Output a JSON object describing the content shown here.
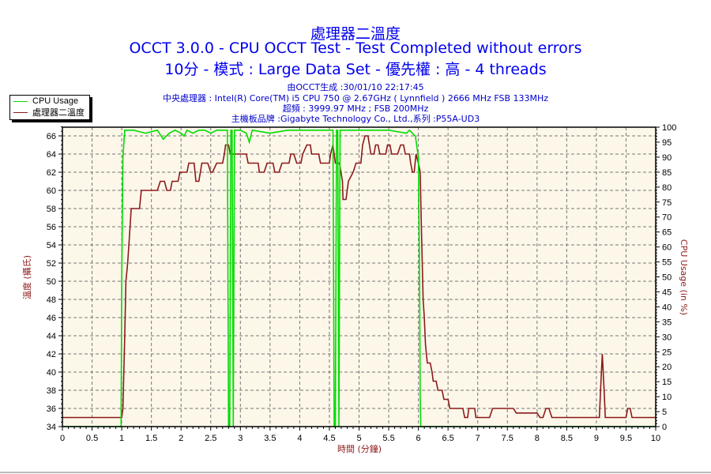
{
  "header": {
    "title": "處理器二溫度",
    "subtitle": "OCCT 3.0.0 - CPU OCCT Test - Test Completed without errors",
    "settings": "10分 - 模式 : Large Data Set - 優先權 : 高 - 4 threads"
  },
  "info": {
    "generated": "由OCCT生成 :30/01/10 22:17:45",
    "cpu": "中央處理器 : Intel(R) Core(TM) i5 CPU 750 @ 2.67GHz ( Lynnfield ) 2666 MHz FSB 133MHz",
    "overclock": "超頻 : 3999.97 MHz ; FSB 200MHz",
    "motherboard": "主機板品牌 :Gigabyte Technology Co., Ltd.,系列 :P55A-UD3"
  },
  "legend": {
    "items": [
      {
        "label": "CPU Usage",
        "color": "#00dd00"
      },
      {
        "label": "處理器二溫度",
        "color": "#8b1a1a"
      }
    ]
  },
  "colors": {
    "plot_bg": "#fdf7e9",
    "grid": "#777777",
    "temp": "#8b1a1a",
    "cpu": "#00dd00",
    "title": "#0000ee"
  },
  "chart_data": {
    "type": "line",
    "title": "處理器二溫度",
    "xlabel": "時間 (分鐘)",
    "ylabel": "溫度 (攝氏)",
    "y2label": "CPU Usage (in %)",
    "xlim": [
      0,
      10
    ],
    "ylim": [
      34,
      67
    ],
    "y2lim": [
      0,
      100
    ],
    "x_ticks": [
      "0",
      "0.5",
      "1",
      "1.5",
      "2",
      "2.5",
      "3",
      "3.5",
      "4",
      "4.5",
      "5",
      "5.5",
      "6",
      "6.5",
      "7",
      "7.5",
      "8",
      "8.5",
      "9",
      "9.5",
      "10"
    ],
    "y_ticks": [
      "34",
      "36",
      "38",
      "40",
      "42",
      "44",
      "46",
      "48",
      "50",
      "52",
      "54",
      "56",
      "58",
      "60",
      "62",
      "64",
      "66"
    ],
    "y2_ticks": [
      "0",
      "5",
      "10",
      "15",
      "20",
      "25",
      "30",
      "35",
      "40",
      "45",
      "50",
      "55",
      "60",
      "65",
      "70",
      "75",
      "80",
      "85",
      "90",
      "95",
      "100"
    ],
    "grid": true,
    "legend_position": "top-left outside",
    "series": [
      {
        "name": "處理器二溫度",
        "axis": "left",
        "points": [
          [
            0,
            35
          ],
          [
            1.0,
            35
          ],
          [
            1.02,
            36
          ],
          [
            1.05,
            44
          ],
          [
            1.07,
            50
          ],
          [
            1.1,
            52
          ],
          [
            1.13,
            55
          ],
          [
            1.16,
            58
          ],
          [
            1.3,
            58
          ],
          [
            1.33,
            60
          ],
          [
            1.6,
            60
          ],
          [
            1.65,
            61
          ],
          [
            1.72,
            61
          ],
          [
            1.76,
            60
          ],
          [
            1.82,
            60
          ],
          [
            1.85,
            61
          ],
          [
            1.95,
            61
          ],
          [
            1.98,
            62
          ],
          [
            2.1,
            62
          ],
          [
            2.13,
            63
          ],
          [
            2.22,
            63
          ],
          [
            2.25,
            61
          ],
          [
            2.3,
            61
          ],
          [
            2.35,
            63
          ],
          [
            2.45,
            63
          ],
          [
            2.5,
            62
          ],
          [
            2.53,
            62
          ],
          [
            2.6,
            63
          ],
          [
            2.7,
            63
          ],
          [
            2.73,
            64
          ],
          [
            2.75,
            65
          ],
          [
            2.8,
            65
          ],
          [
            2.83,
            64
          ],
          [
            3.1,
            64
          ],
          [
            3.13,
            63
          ],
          [
            3.3,
            63
          ],
          [
            3.32,
            62
          ],
          [
            3.4,
            62
          ],
          [
            3.45,
            63
          ],
          [
            3.55,
            63
          ],
          [
            3.58,
            62
          ],
          [
            3.65,
            62
          ],
          [
            3.7,
            63
          ],
          [
            3.82,
            63
          ],
          [
            3.85,
            64
          ],
          [
            3.9,
            64
          ],
          [
            3.95,
            63
          ],
          [
            4.02,
            63
          ],
          [
            4.05,
            64
          ],
          [
            4.12,
            65
          ],
          [
            4.18,
            65
          ],
          [
            4.2,
            64
          ],
          [
            4.32,
            64
          ],
          [
            4.35,
            63
          ],
          [
            4.5,
            63
          ],
          [
            4.52,
            64
          ],
          [
            4.56,
            65
          ],
          [
            4.6,
            63
          ],
          [
            4.67,
            63
          ],
          [
            4.72,
            61
          ],
          [
            4.73,
            59
          ],
          [
            4.78,
            59
          ],
          [
            4.82,
            61
          ],
          [
            4.9,
            62
          ],
          [
            4.95,
            63
          ],
          [
            5.0,
            63
          ],
          [
            5.03,
            63
          ],
          [
            5.06,
            65
          ],
          [
            5.1,
            66
          ],
          [
            5.15,
            66
          ],
          [
            5.2,
            64
          ],
          [
            5.25,
            64
          ],
          [
            5.28,
            65
          ],
          [
            5.32,
            65
          ],
          [
            5.35,
            64
          ],
          [
            5.45,
            64
          ],
          [
            5.48,
            65
          ],
          [
            5.52,
            65
          ],
          [
            5.55,
            64
          ],
          [
            5.65,
            64
          ],
          [
            5.7,
            65
          ],
          [
            5.75,
            65
          ],
          [
            5.78,
            64
          ],
          [
            5.85,
            64
          ],
          [
            5.87,
            63
          ],
          [
            5.9,
            62
          ],
          [
            5.93,
            62
          ],
          [
            5.96,
            64
          ],
          [
            6.0,
            63
          ],
          [
            6.03,
            62
          ],
          [
            6.05,
            56
          ],
          [
            6.08,
            48
          ],
          [
            6.1,
            46
          ],
          [
            6.12,
            43
          ],
          [
            6.15,
            41
          ],
          [
            6.2,
            41
          ],
          [
            6.23,
            40
          ],
          [
            6.25,
            39
          ],
          [
            6.3,
            39
          ],
          [
            6.33,
            38
          ],
          [
            6.4,
            38
          ],
          [
            6.43,
            37
          ],
          [
            6.5,
            37
          ],
          [
            6.53,
            36
          ],
          [
            6.6,
            36
          ],
          [
            6.75,
            36
          ],
          [
            6.78,
            35
          ],
          [
            6.83,
            35
          ],
          [
            6.85,
            36
          ],
          [
            6.95,
            36
          ],
          [
            6.97,
            35
          ],
          [
            7.2,
            35
          ],
          [
            7.25,
            36
          ],
          [
            7.3,
            36
          ],
          [
            7.4,
            36
          ],
          [
            7.6,
            36
          ],
          [
            7.65,
            35.5
          ],
          [
            8.0,
            35.5
          ],
          [
            8.05,
            35
          ],
          [
            8.1,
            35
          ],
          [
            8.15,
            36
          ],
          [
            8.2,
            36
          ],
          [
            8.25,
            35
          ],
          [
            9.05,
            35
          ],
          [
            9.07,
            38
          ],
          [
            9.1,
            42
          ],
          [
            9.13,
            38
          ],
          [
            9.15,
            35
          ],
          [
            9.5,
            35
          ],
          [
            9.53,
            36
          ],
          [
            9.57,
            36
          ],
          [
            9.6,
            35
          ],
          [
            10,
            35
          ]
        ]
      },
      {
        "name": "CPU Usage",
        "axis": "right",
        "points": [
          [
            0,
            0
          ],
          [
            0.99,
            0
          ],
          [
            1.0,
            50
          ],
          [
            1.02,
            90
          ],
          [
            1.05,
            99
          ],
          [
            1.2,
            99
          ],
          [
            1.4,
            98
          ],
          [
            1.6,
            99
          ],
          [
            1.7,
            96
          ],
          [
            1.8,
            98
          ],
          [
            1.9,
            99
          ],
          [
            2.0,
            98
          ],
          [
            2.05,
            97
          ],
          [
            2.1,
            99
          ],
          [
            2.2,
            98
          ],
          [
            2.3,
            99
          ],
          [
            2.4,
            99
          ],
          [
            2.5,
            98
          ],
          [
            2.6,
            99
          ],
          [
            2.78,
            99
          ],
          [
            2.8,
            0
          ],
          [
            2.82,
            0
          ],
          [
            2.84,
            99
          ],
          [
            2.86,
            99
          ],
          [
            2.88,
            0
          ],
          [
            2.9,
            99
          ],
          [
            3.0,
            99
          ],
          [
            3.1,
            98
          ],
          [
            3.15,
            95
          ],
          [
            3.2,
            99
          ],
          [
            3.5,
            98
          ],
          [
            3.8,
            99
          ],
          [
            4.2,
            99
          ],
          [
            4.56,
            99
          ],
          [
            4.58,
            0
          ],
          [
            4.6,
            0
          ],
          [
            4.62,
            99
          ],
          [
            4.64,
            99
          ],
          [
            4.66,
            0
          ],
          [
            4.68,
            99
          ],
          [
            5.0,
            99
          ],
          [
            5.5,
            99
          ],
          [
            5.8,
            98
          ],
          [
            5.85,
            99
          ],
          [
            5.95,
            97
          ],
          [
            6.0,
            90
          ],
          [
            6.02,
            50
          ],
          [
            6.03,
            10
          ],
          [
            6.04,
            0
          ],
          [
            10,
            0
          ]
        ]
      }
    ]
  },
  "axes": {
    "x_title": "時間 (分鐘)",
    "y_title": "溫度 (攝氏)",
    "y2_title": "CPU Usage (in %)"
  }
}
